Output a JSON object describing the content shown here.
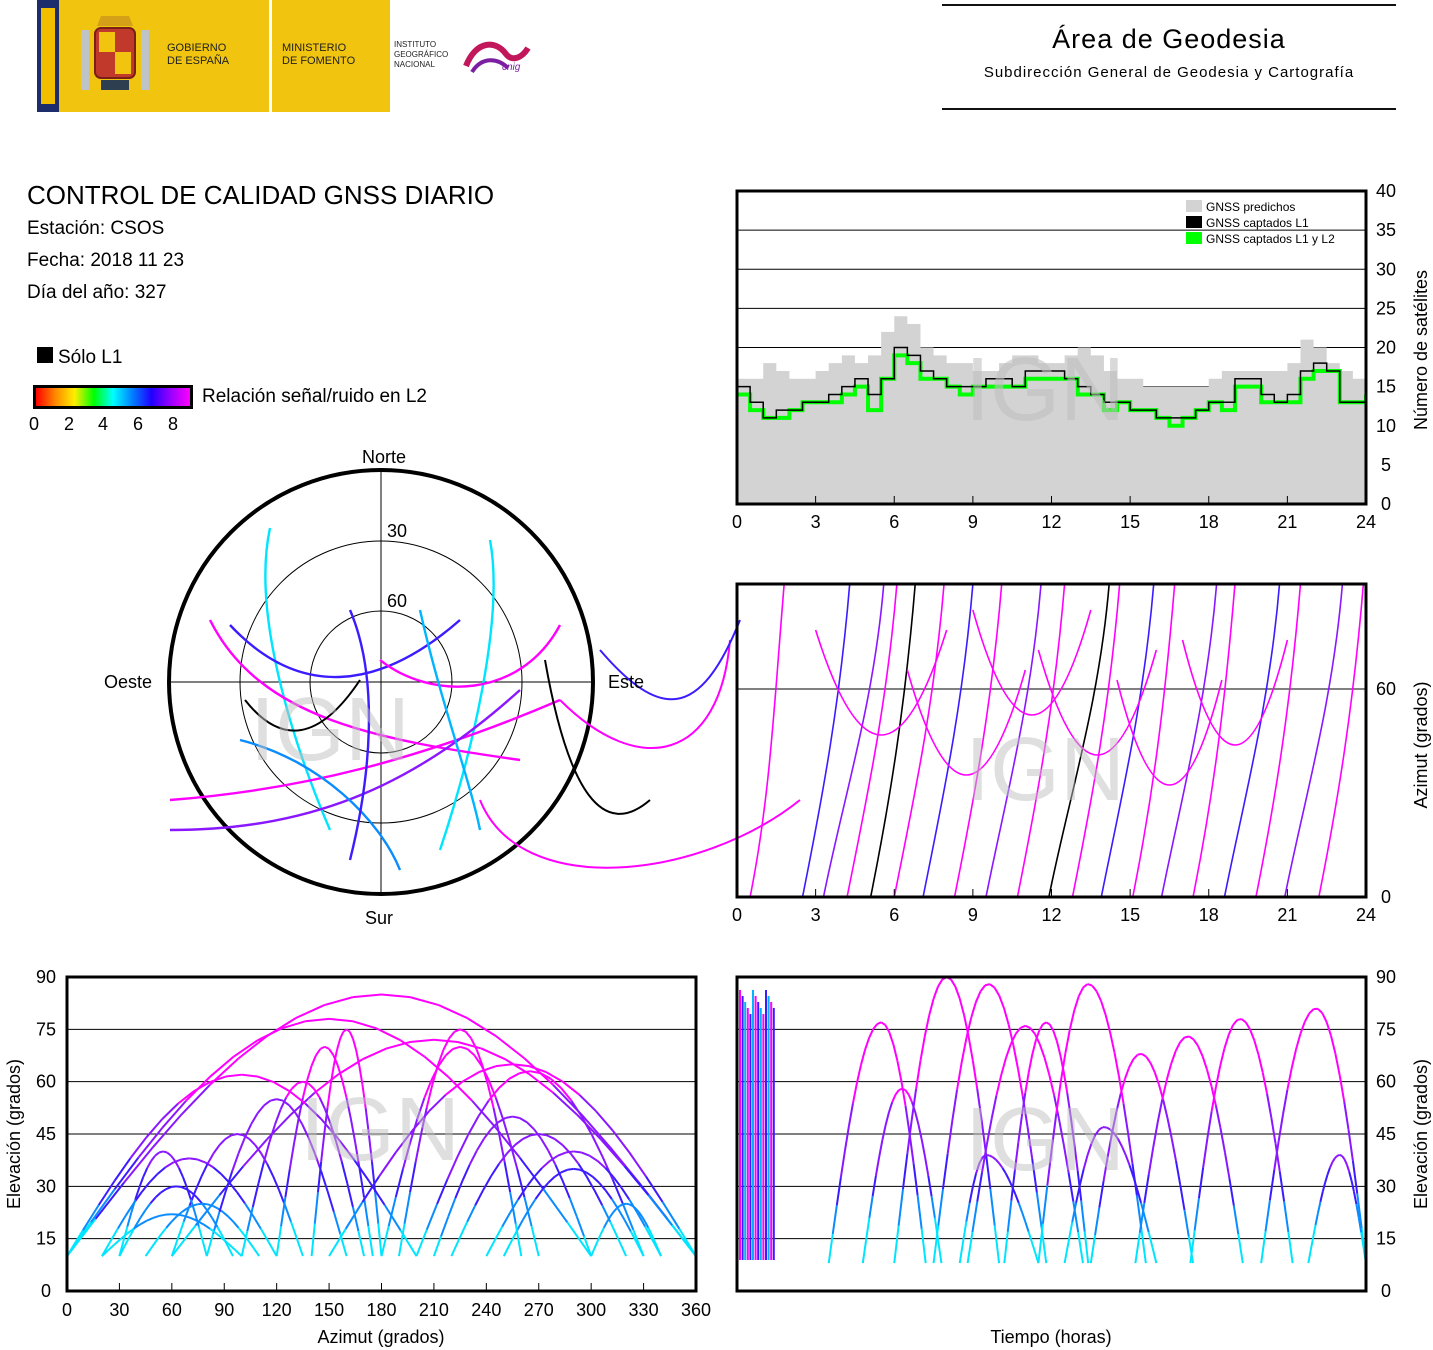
{
  "header": {
    "gov_line1": "GOBIERNO",
    "gov_line2": "DE ESPAÑA",
    "min_line1": "MINISTERIO",
    "min_line2": "DE FOMENTO",
    "inst_line1": "INSTITUTO",
    "inst_line2": "GEOGRÁFICO",
    "inst_line3": "NACIONAL",
    "cnig": "cnig",
    "area_title": "Área de Geodesia",
    "area_subtitle": "Subdirección General de Geodesia y Cartografía"
  },
  "report": {
    "title": "CONTROL DE CALIDAD GNSS DIARIO",
    "station": "Estación: CSOS",
    "date": "Fecha: 2018 11 23",
    "doy": "Día del año: 327"
  },
  "legend": {
    "l1_only": "Sólo L1",
    "snr_label": "Relación señal/ruido en L2",
    "snr_ticks": [
      "0",
      "2",
      "4",
      "6",
      "8"
    ]
  },
  "watermark": "IGN",
  "colors": {
    "predicted": "#d3d3d3",
    "l1": "#000000",
    "l1l2": "#00ff00",
    "track_high": "#ff00ff",
    "track_mid": "#3b1cff",
    "track_low": "#00e5ff"
  },
  "chart_data": [
    {
      "id": "satellites",
      "type": "area",
      "ylabel": "Número de satélites",
      "xlim": [
        0,
        24
      ],
      "ylim": [
        0,
        40
      ],
      "xticks": [
        "0",
        "3",
        "6",
        "9",
        "12",
        "15",
        "18",
        "21",
        "24"
      ],
      "yticks": [
        "0",
        "5",
        "10",
        "15",
        "20",
        "25",
        "30",
        "35",
        "40"
      ],
      "grid": true,
      "legend_position": "top-right",
      "legend": [
        "GNSS predichos",
        "GNSS captados L1",
        "GNSS captados L1 y L2"
      ],
      "x": [
        0,
        0.5,
        1,
        1.5,
        2,
        2.5,
        3,
        3.5,
        4,
        4.5,
        5,
        5.5,
        6,
        6.5,
        7,
        7.5,
        8,
        8.5,
        9,
        9.5,
        10,
        10.5,
        11,
        11.5,
        12,
        12.5,
        13,
        13.5,
        14,
        14.5,
        15,
        15.5,
        16,
        16.5,
        17,
        17.5,
        18,
        18.5,
        19,
        19.5,
        20,
        20.5,
        21,
        21.5,
        22,
        22.5,
        23,
        23.5,
        24
      ],
      "series": [
        {
          "name": "GNSS predichos",
          "values": [
            16,
            16,
            18,
            17,
            16,
            16,
            17,
            18,
            19,
            18,
            19,
            22,
            24,
            23,
            20,
            19,
            18,
            18,
            17,
            17,
            18,
            19,
            19,
            18,
            18,
            19,
            20,
            19,
            17,
            16,
            16,
            15,
            15,
            15,
            15,
            15,
            16,
            17,
            17,
            17,
            17,
            17,
            18,
            21,
            20,
            18,
            17,
            16,
            15
          ]
        },
        {
          "name": "GNSS captados L1",
          "values": [
            15,
            13,
            11,
            12,
            12,
            13,
            13,
            14,
            15,
            16,
            14,
            16,
            20,
            19,
            17,
            16,
            15,
            15,
            15,
            16,
            16,
            15,
            17,
            17,
            17,
            16,
            15,
            14,
            13,
            13,
            12,
            12,
            11,
            11,
            11,
            12,
            13,
            13,
            16,
            16,
            14,
            13,
            14,
            17,
            18,
            17,
            13,
            13,
            14
          ]
        },
        {
          "name": "GNSS captados L1 y L2",
          "values": [
            14,
            12,
            11,
            11,
            12,
            13,
            13,
            13,
            14,
            15,
            12,
            16,
            19,
            18,
            16,
            16,
            15,
            14,
            15,
            15,
            15,
            15,
            16,
            16,
            16,
            16,
            14,
            14,
            12,
            13,
            12,
            12,
            11,
            10,
            11,
            12,
            13,
            12,
            15,
            15,
            13,
            13,
            13,
            16,
            17,
            17,
            13,
            13,
            14
          ]
        }
      ]
    },
    {
      "id": "skyplot",
      "type": "scatter",
      "labels": {
        "north": "Norte",
        "south": "Sur",
        "east": "Este",
        "west": "Oeste"
      },
      "rings": [
        "30",
        "60"
      ]
    },
    {
      "id": "azimuth_time",
      "type": "scatter",
      "ylabel": "Azimut (grados)",
      "xlim": [
        0,
        24
      ],
      "xticks": [
        "0",
        "3",
        "6",
        "9",
        "12",
        "15",
        "18",
        "21",
        "24"
      ],
      "yticks": [
        "0",
        "60"
      ],
      "grid": true
    },
    {
      "id": "elevation_azimuth",
      "type": "scatter",
      "xlabel": "Azimut (grados)",
      "ylabel": "Elevación (grados)",
      "xlim": [
        0,
        360
      ],
      "ylim": [
        0,
        90
      ],
      "xticks": [
        "0",
        "30",
        "60",
        "90",
        "120",
        "150",
        "180",
        "210",
        "240",
        "270",
        "300",
        "330",
        "360"
      ],
      "yticks": [
        "0",
        "15",
        "30",
        "45",
        "60",
        "75",
        "90"
      ],
      "grid": true
    },
    {
      "id": "elevation_time",
      "type": "line",
      "xlabel": "Tiempo (horas)",
      "ylabel": "Elevación (grados)",
      "ylim": [
        0,
        90
      ],
      "yticks": [
        "0",
        "15",
        "30",
        "45",
        "60",
        "75",
        "90"
      ],
      "grid": true,
      "arcs": [
        {
          "start": 3.5,
          "peak_time": 5.5,
          "end": 7.2,
          "peak": 77
        },
        {
          "start": 4.8,
          "peak_time": 6.3,
          "end": 7.8,
          "peak": 58
        },
        {
          "start": 6.0,
          "peak_time": 8.0,
          "end": 10.0,
          "peak": 90
        },
        {
          "start": 7.5,
          "peak_time": 9.6,
          "end": 11.8,
          "peak": 88
        },
        {
          "start": 8.8,
          "peak_time": 11.0,
          "end": 13.2,
          "peak": 76
        },
        {
          "start": 10.2,
          "peak_time": 11.8,
          "end": 13.4,
          "peak": 77
        },
        {
          "start": 11.5,
          "peak_time": 13.4,
          "end": 15.6,
          "peak": 88
        },
        {
          "start": 13.5,
          "peak_time": 15.4,
          "end": 17.4,
          "peak": 68
        },
        {
          "start": 15.2,
          "peak_time": 17.2,
          "end": 19.3,
          "peak": 73
        },
        {
          "start": 17.3,
          "peak_time": 19.2,
          "end": 21.2,
          "peak": 78
        },
        {
          "start": 20.0,
          "peak_time": 22.1,
          "end": 24.0,
          "peak": 81
        },
        {
          "start": 12.5,
          "peak_time": 14.0,
          "end": 16.0,
          "peak": 47
        },
        {
          "start": 8.5,
          "peak_time": 9.5,
          "end": 11.5,
          "peak": 39
        },
        {
          "start": 21.8,
          "peak_time": 23.0,
          "end": 24.0,
          "peak": 39
        }
      ]
    }
  ]
}
